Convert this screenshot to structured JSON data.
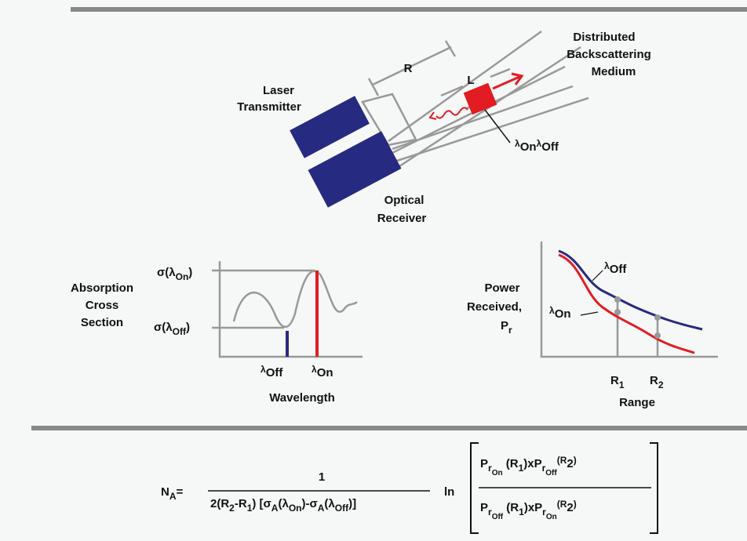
{
  "scene": {
    "medium": [
      "Distributed",
      "Backscattering",
      "Medium"
    ],
    "transmitter": [
      "Laser",
      "Transmitter"
    ],
    "receiver": [
      "Optical",
      "Receiver"
    ],
    "range_label": "R",
    "cell_label": "L",
    "wavelengths": [
      "λ",
      "On",
      "λ",
      "Off"
    ]
  },
  "absorption_plot": {
    "ylabel": [
      "Absorption",
      "Cross",
      "Section"
    ],
    "sigma_on": [
      "σ(λ",
      "On",
      ")"
    ],
    "sigma_off": [
      "σ(λ",
      "Off",
      ")"
    ],
    "lambda_off": [
      "λ",
      "Off"
    ],
    "lambda_on": [
      "λ",
      "On"
    ],
    "xlabel": "Wavelength"
  },
  "power_plot": {
    "ylabel": [
      "Power",
      "Received,",
      "P",
      "r"
    ],
    "curve_off": [
      "λ",
      "Off"
    ],
    "curve_on": [
      "λ",
      "On"
    ],
    "r1": [
      "R",
      "1"
    ],
    "r2": [
      "R",
      "2"
    ],
    "xlabel": "Range"
  },
  "formula": {
    "lhs": [
      "N",
      "A",
      "="
    ],
    "numerator": "1",
    "denominator": [
      "2(R",
      "2",
      "-R",
      "1",
      ") [σ",
      "A",
      "(λ",
      "On",
      ")-σ",
      "A",
      "(λ",
      "Off",
      ")]"
    ],
    "ln": "ln",
    "top": [
      "P",
      "r",
      "On",
      " (R",
      "1",
      ")xP",
      "r",
      "Off",
      "(R",
      "2",
      ")"
    ],
    "bottom": [
      "P",
      "r",
      "Off",
      " (R",
      "1",
      ")xP",
      "r",
      "On",
      "(R",
      "2",
      ")"
    ]
  }
}
